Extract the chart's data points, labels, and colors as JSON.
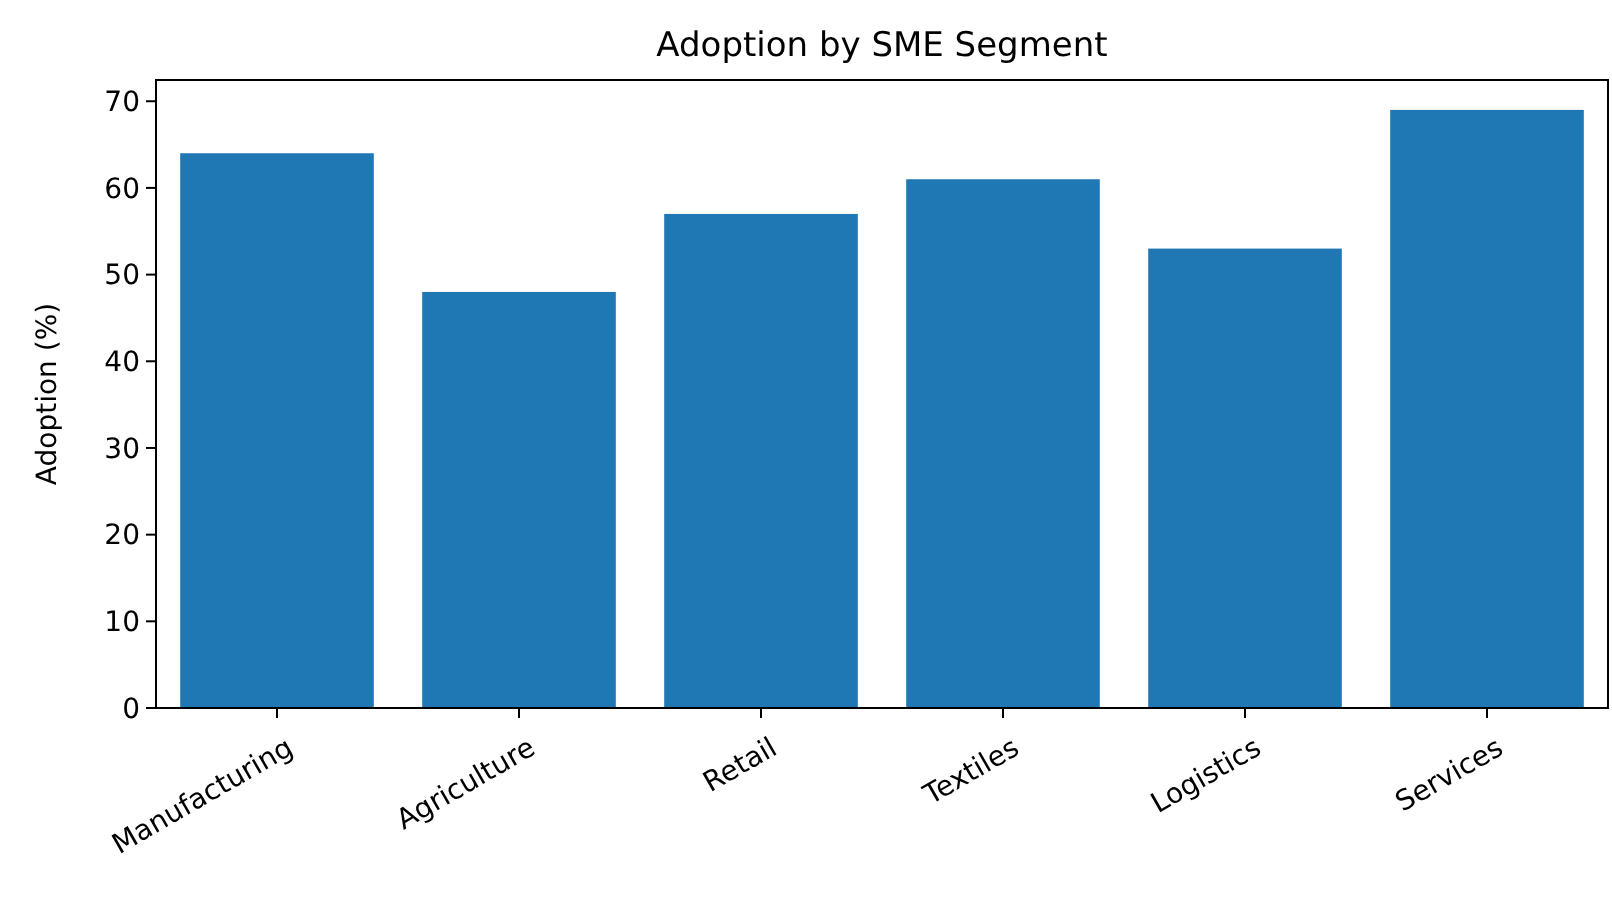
{
  "chart_data": {
    "type": "bar",
    "title": "Adoption by SME Segment",
    "ylabel": "Adoption (%)",
    "categories": [
      "Manufacturing",
      "Agriculture",
      "Retail",
      "Textiles",
      "Logistics",
      "Services"
    ],
    "values": [
      64,
      48,
      57,
      61,
      53,
      69
    ],
    "color": "#1f77b4",
    "ylim": [
      0,
      72.45
    ],
    "yticks": [
      0,
      10,
      20,
      30,
      40,
      50,
      60,
      70
    ],
    "grid": false
  }
}
